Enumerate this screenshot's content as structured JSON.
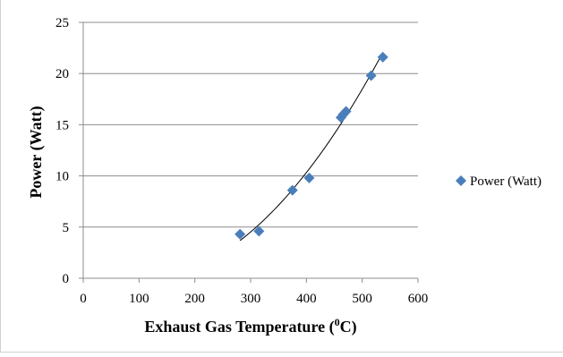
{
  "chart_data": {
    "type": "scatter",
    "xlabel": "Exhaust Gas Temperature (",
    "xlabel_superscript": "0",
    "xlabel_unit_suffix": "C)",
    "ylabel": "Power (Watt)",
    "xlim": [
      0,
      600
    ],
    "ylim": [
      0,
      25
    ],
    "x_ticks": [
      0,
      100,
      200,
      300,
      400,
      500,
      600
    ],
    "y_ticks": [
      0,
      5,
      10,
      15,
      20,
      25
    ],
    "grid": "horizontal major gridlines",
    "legend_position": "right",
    "trendline": true,
    "series": [
      {
        "name": "Power (Watt)",
        "marker": "diamond",
        "color": "#4a7ebb",
        "points": [
          {
            "x": 281,
            "y": 4.3
          },
          {
            "x": 315,
            "y": 4.6
          },
          {
            "x": 375,
            "y": 8.6
          },
          {
            "x": 405,
            "y": 9.8
          },
          {
            "x": 462,
            "y": 15.7
          },
          {
            "x": 466,
            "y": 16.0
          },
          {
            "x": 471,
            "y": 16.3
          },
          {
            "x": 516,
            "y": 19.8
          },
          {
            "x": 537,
            "y": 21.6
          }
        ]
      }
    ],
    "colors": {
      "marker": "#4a7ebb",
      "trendline": "#000000",
      "gridline": "#8c8c8c",
      "axis": "#8c8c8c",
      "text": "#000000"
    }
  }
}
